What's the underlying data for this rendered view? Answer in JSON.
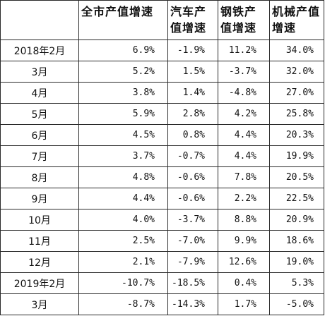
{
  "chart_data": {
    "type": "table",
    "columns": [
      "",
      "全市产值增速",
      "汽车产值增速",
      "钢铁产值增速",
      "机械产值增速"
    ],
    "rows": [
      {
        "period": "2018年2月",
        "values": [
          "6.9%",
          "-1.9%",
          "11.2%",
          "34.0%"
        ]
      },
      {
        "period": "3月",
        "values": [
          "5.2%",
          "1.5%",
          "-3.7%",
          "32.0%"
        ]
      },
      {
        "period": "4月",
        "values": [
          "3.8%",
          "1.4%",
          "-4.8%",
          "27.0%"
        ]
      },
      {
        "period": "5月",
        "values": [
          "5.9%",
          "2.8%",
          "4.2%",
          "25.8%"
        ]
      },
      {
        "period": "6月",
        "values": [
          "4.5%",
          "0.8%",
          "4.4%",
          "20.3%"
        ]
      },
      {
        "period": "7月",
        "values": [
          "3.7%",
          "-0.7%",
          "4.4%",
          "19.9%"
        ]
      },
      {
        "period": "8月",
        "values": [
          "4.8%",
          "-0.6%",
          "7.8%",
          "20.5%"
        ]
      },
      {
        "period": "9月",
        "values": [
          "4.4%",
          "-0.6%",
          "2.2%",
          "22.5%"
        ]
      },
      {
        "period": "10月",
        "values": [
          "4.0%",
          "-3.7%",
          "8.8%",
          "20.9%"
        ]
      },
      {
        "period": "11月",
        "values": [
          "2.5%",
          "-7.0%",
          "9.9%",
          "18.6%"
        ]
      },
      {
        "period": "12月",
        "values": [
          "2.1%",
          "-7.9%",
          "12.6%",
          "19.0%"
        ]
      },
      {
        "period": "2019年2月",
        "values": [
          "-10.7%",
          "-18.5%",
          "0.4%",
          "5.3%"
        ]
      },
      {
        "period": "3月",
        "values": [
          "-8.7%",
          "-14.3%",
          "1.7%",
          "-5.0%"
        ]
      }
    ]
  }
}
